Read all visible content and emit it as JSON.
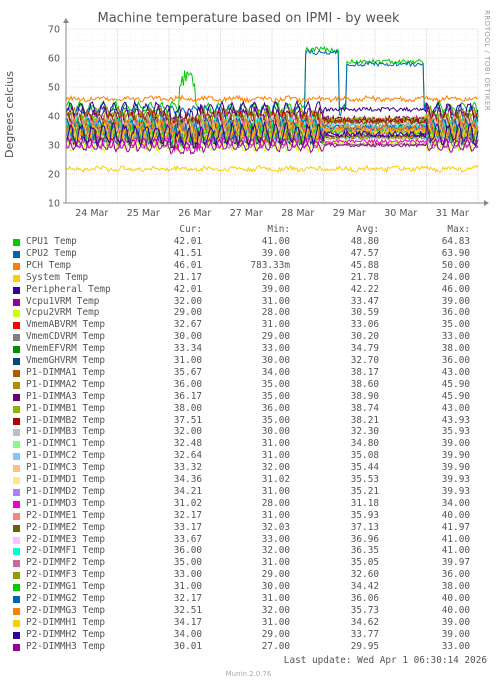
{
  "title": "Machine temperature based on IPMI - by week",
  "side_label": "RRDTOOL / TOBI OETIKER",
  "legend_headers": [
    "Cur:",
    "Min:",
    "Avg:",
    "Max:"
  ],
  "footer": "Last update: Wed Apr  1 06:30:14 2026",
  "munin_version": "Munin 2.0.76",
  "chart_data": {
    "type": "line",
    "title": "Machine temperature based on IPMI - by week",
    "ylabel": "Degrees celcius",
    "xlabel": "",
    "ylim": [
      10,
      70
    ],
    "yticks": [
      10,
      20,
      30,
      40,
      50,
      60,
      70
    ],
    "xlim": [
      0,
      8
    ],
    "xticks": [
      {
        "x": 0.5,
        "label": "24 Mar"
      },
      {
        "x": 1.5,
        "label": "25 Mar"
      },
      {
        "x": 2.5,
        "label": "26 Mar"
      },
      {
        "x": 3.5,
        "label": "27 Mar"
      },
      {
        "x": 4.5,
        "label": "28 Mar"
      },
      {
        "x": 5.5,
        "label": "29 Mar"
      },
      {
        "x": 6.5,
        "label": "30 Mar"
      },
      {
        "x": 7.5,
        "label": "31 Mar"
      }
    ],
    "grid": true,
    "series": [
      {
        "name": "CPU1 Temp",
        "color": "#00cc00",
        "cur": "42.01",
        "min": "41.00",
        "avg": "48.80",
        "max": "64.83"
      },
      {
        "name": "CPU2 Temp",
        "color": "#0066b3",
        "cur": "41.51",
        "min": "39.00",
        "avg": "47.57",
        "max": "63.90"
      },
      {
        "name": "PCH Temp",
        "color": "#ff8000",
        "cur": "46.01",
        "min": "783.33m",
        "avg": "45.88",
        "max": "50.00"
      },
      {
        "name": "System Temp",
        "color": "#ffcc00",
        "cur": "21.17",
        "min": "20.00",
        "avg": "21.78",
        "max": "24.00"
      },
      {
        "name": "Peripheral Temp",
        "color": "#330099",
        "cur": "42.01",
        "min": "39.00",
        "avg": "42.22",
        "max": "46.00"
      },
      {
        "name": "Vcpu1VRM Temp",
        "color": "#990099",
        "cur": "32.00",
        "min": "31.00",
        "avg": "33.47",
        "max": "39.00"
      },
      {
        "name": "Vcpu2VRM Temp",
        "color": "#ccff00",
        "cur": "29.00",
        "min": "28.00",
        "avg": "30.59",
        "max": "36.00"
      },
      {
        "name": "VmemABVRM Temp",
        "color": "#ff0000",
        "cur": "32.67",
        "min": "31.00",
        "avg": "33.06",
        "max": "35.00"
      },
      {
        "name": "VmemCDVRM Temp",
        "color": "#808080",
        "cur": "30.00",
        "min": "29.00",
        "avg": "30.20",
        "max": "33.00"
      },
      {
        "name": "VmemEFVRM Temp",
        "color": "#008f00",
        "cur": "33.34",
        "min": "33.00",
        "avg": "34.79",
        "max": "38.00"
      },
      {
        "name": "VmemGHVRM Temp",
        "color": "#00487d",
        "cur": "31.00",
        "min": "30.00",
        "avg": "32.70",
        "max": "36.00"
      },
      {
        "name": "P1-DIMMA1 Temp",
        "color": "#b35a00",
        "cur": "35.67",
        "min": "34.00",
        "avg": "38.17",
        "max": "43.00"
      },
      {
        "name": "P1-DIMMA2 Temp",
        "color": "#b38f00",
        "cur": "36.00",
        "min": "35.00",
        "avg": "38.60",
        "max": "45.90"
      },
      {
        "name": "P1-DIMMA3 Temp",
        "color": "#6b006b",
        "cur": "36.17",
        "min": "35.00",
        "avg": "38.90",
        "max": "45.90"
      },
      {
        "name": "P1-DIMMB1 Temp",
        "color": "#8fb300",
        "cur": "38.00",
        "min": "36.00",
        "avg": "38.74",
        "max": "43.00"
      },
      {
        "name": "P1-DIMMB2 Temp",
        "color": "#b30000",
        "cur": "37.51",
        "min": "35.00",
        "avg": "38.21",
        "max": "43.93"
      },
      {
        "name": "P1-DIMMB3 Temp",
        "color": "#bebebe",
        "cur": "32.00",
        "min": "30.00",
        "avg": "32.30",
        "max": "35.93"
      },
      {
        "name": "P1-DIMMC1 Temp",
        "color": "#80ff80",
        "cur": "32.48",
        "min": "31.00",
        "avg": "34.80",
        "max": "39.00"
      },
      {
        "name": "P1-DIMMC2 Temp",
        "color": "#80c9ff",
        "cur": "32.64",
        "min": "31.00",
        "avg": "35.08",
        "max": "39.90"
      },
      {
        "name": "P1-DIMMC3 Temp",
        "color": "#ffc080",
        "cur": "33.32",
        "min": "32.00",
        "avg": "35.44",
        "max": "39.90"
      },
      {
        "name": "P1-DIMMD1 Temp",
        "color": "#ffe680",
        "cur": "34.36",
        "min": "31.02",
        "avg": "35.53",
        "max": "39.93"
      },
      {
        "name": "P1-DIMMD2 Temp",
        "color": "#aa80ff",
        "cur": "34.21",
        "min": "31.00",
        "avg": "35.21",
        "max": "39.93"
      },
      {
        "name": "P1-DIMMD3 Temp",
        "color": "#ee00cc",
        "cur": "31.02",
        "min": "28.00",
        "avg": "31.18",
        "max": "34.00"
      },
      {
        "name": "P2-DIMME1 Temp",
        "color": "#ff8080",
        "cur": "32.17",
        "min": "31.00",
        "avg": "35.93",
        "max": "40.00"
      },
      {
        "name": "P2-DIMME2 Temp",
        "color": "#666600",
        "cur": "33.17",
        "min": "32.03",
        "avg": "37.13",
        "max": "41.97"
      },
      {
        "name": "P2-DIMME3 Temp",
        "color": "#ffbfff",
        "cur": "33.67",
        "min": "33.00",
        "avg": "36.96",
        "max": "41.00"
      },
      {
        "name": "P2-DIMMF1 Temp",
        "color": "#00ffcc",
        "cur": "36.00",
        "min": "32.00",
        "avg": "36.35",
        "max": "41.00"
      },
      {
        "name": "P2-DIMMF2 Temp",
        "color": "#cc6699",
        "cur": "35.00",
        "min": "31.00",
        "avg": "35.05",
        "max": "39.97"
      },
      {
        "name": "P2-DIMMF3 Temp",
        "color": "#999900",
        "cur": "33.00",
        "min": "29.00",
        "avg": "32.60",
        "max": "36.00"
      },
      {
        "name": "P2-DIMMG1 Temp",
        "color": "#00cc00",
        "cur": "31.00",
        "min": "30.00",
        "avg": "34.42",
        "max": "38.00"
      },
      {
        "name": "P2-DIMMG2 Temp",
        "color": "#0066b3",
        "cur": "32.17",
        "min": "31.00",
        "avg": "36.06",
        "max": "40.00"
      },
      {
        "name": "P2-DIMMG3 Temp",
        "color": "#ff8000",
        "cur": "32.51",
        "min": "32.00",
        "avg": "35.73",
        "max": "40.00"
      },
      {
        "name": "P2-DIMMH1 Temp",
        "color": "#ffcc00",
        "cur": "34.17",
        "min": "31.00",
        "avg": "34.62",
        "max": "39.00"
      },
      {
        "name": "P2-DIMMH2 Temp",
        "color": "#330099",
        "cur": "34.00",
        "min": "29.00",
        "avg": "33.77",
        "max": "39.00"
      },
      {
        "name": "P2-DIMMH3 Temp",
        "color": "#990099",
        "cur": "30.01",
        "min": "27.00",
        "avg": "29.95",
        "max": "33.00"
      }
    ]
  }
}
